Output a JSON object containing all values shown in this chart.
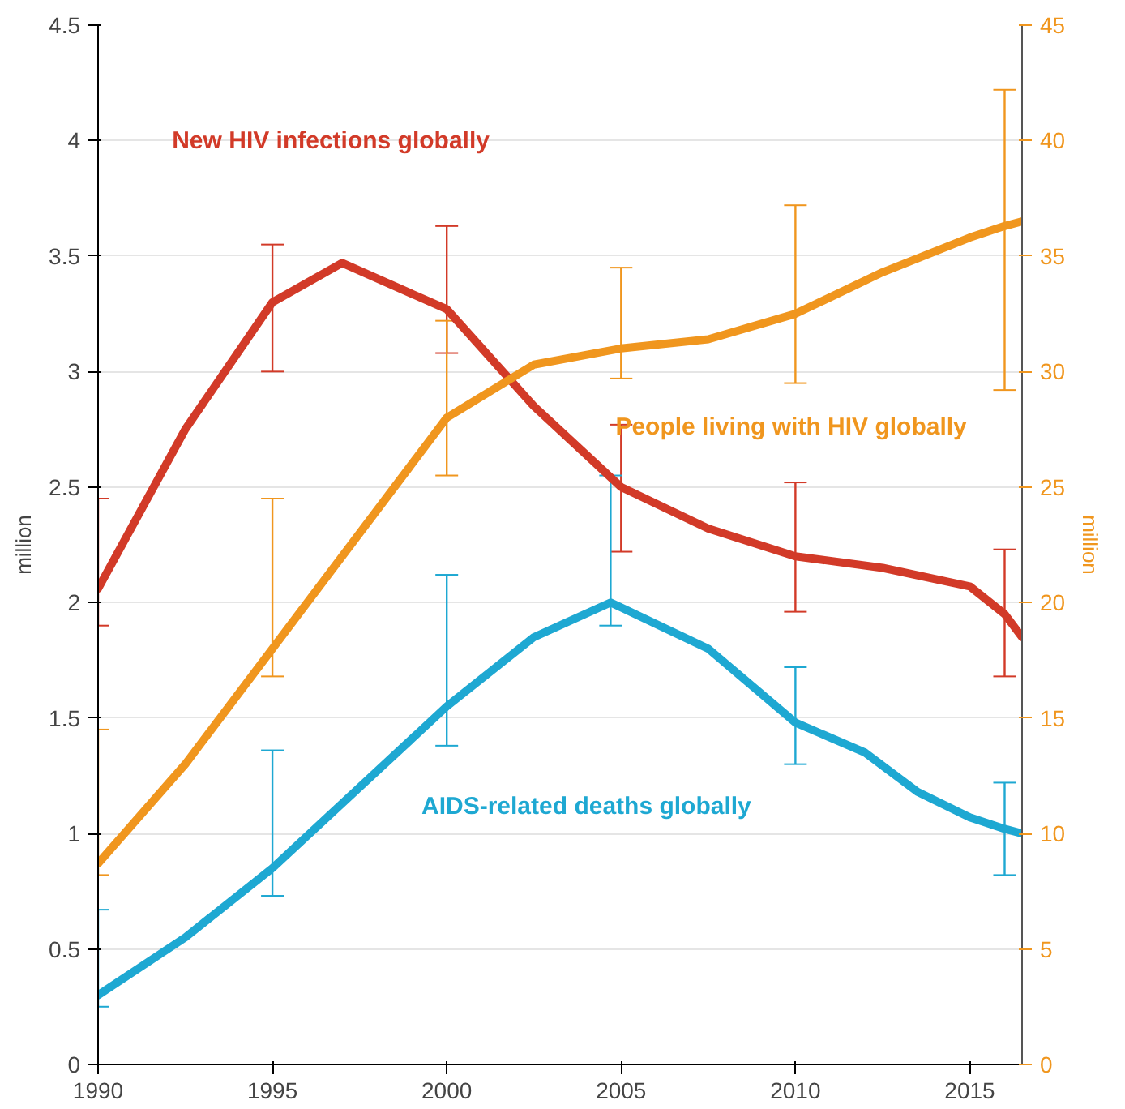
{
  "chart_data": {
    "type": "line",
    "xlim": [
      1990,
      2016.5
    ],
    "xticks": [
      1990,
      1995,
      2000,
      2005,
      2010,
      2015
    ],
    "ylim": [
      0,
      4.5
    ],
    "yticks": [
      0,
      0.5,
      1,
      1.5,
      2,
      2.5,
      3,
      3.5,
      4,
      4.5
    ],
    "y2lim": [
      0,
      45
    ],
    "y2ticks": [
      0,
      5,
      10,
      15,
      20,
      25,
      30,
      35,
      40,
      45
    ],
    "ylabel": "million",
    "y2label": "million",
    "grid": "y",
    "marker": "none",
    "line_style": "solid",
    "series": [
      {
        "name": "New HIV infections globally",
        "color": "#d23a28",
        "x": [
          1990,
          1992.5,
          1995,
          1997,
          2000,
          2002.5,
          2005,
          2007.5,
          2010,
          2012.5,
          2015,
          2016,
          2016.5
        ],
        "values": [
          2.06,
          2.75,
          3.3,
          3.47,
          3.27,
          2.85,
          2.5,
          2.32,
          2.2,
          2.15,
          2.07,
          1.95,
          1.85
        ],
        "errors": [
          [
            1.9,
            2.45
          ],
          null,
          [
            3.0,
            3.55
          ],
          null,
          [
            3.08,
            3.63
          ],
          null,
          [
            2.22,
            2.77
          ],
          null,
          [
            1.96,
            2.52
          ],
          null,
          null,
          [
            1.68,
            2.23
          ],
          null
        ]
      },
      {
        "name": "People living with HIV globally",
        "color": "#f0961e",
        "axis": "y2",
        "x": [
          1990,
          1992.5,
          1995,
          1997.5,
          2000,
          2002.5,
          2005,
          2007.5,
          2010,
          2012.5,
          2015,
          2016,
          2016.5
        ],
        "values": [
          8.7,
          13,
          18,
          23,
          28,
          30.3,
          31,
          31.4,
          32.5,
          34.3,
          35.8,
          36.3,
          36.5
        ],
        "errors": [
          [
            8.2,
            14.5
          ],
          null,
          [
            16.8,
            24.5
          ],
          null,
          [
            25.5,
            32.2
          ],
          null,
          [
            29.7,
            34.5
          ],
          null,
          [
            29.5,
            37.2
          ],
          null,
          null,
          [
            29.2,
            42.2
          ],
          null
        ]
      },
      {
        "name": "AIDS-related deaths globally",
        "color": "#1ea8d2",
        "x": [
          1990,
          1992.5,
          1995,
          1997.5,
          2000,
          2002.5,
          2004.7,
          2007.5,
          2010,
          2012,
          2013.5,
          2015,
          2016,
          2016.5
        ],
        "values": [
          0.3,
          0.55,
          0.85,
          1.2,
          1.55,
          1.85,
          2.0,
          1.8,
          1.48,
          1.35,
          1.18,
          1.07,
          1.02,
          1.0
        ],
        "errors": [
          [
            0.25,
            0.67
          ],
          null,
          [
            0.73,
            1.36
          ],
          null,
          [
            1.38,
            2.12
          ],
          null,
          [
            1.9,
            2.55
          ],
          null,
          [
            1.3,
            1.72
          ],
          null,
          null,
          null,
          [
            0.82,
            1.22
          ],
          null
        ]
      }
    ]
  }
}
